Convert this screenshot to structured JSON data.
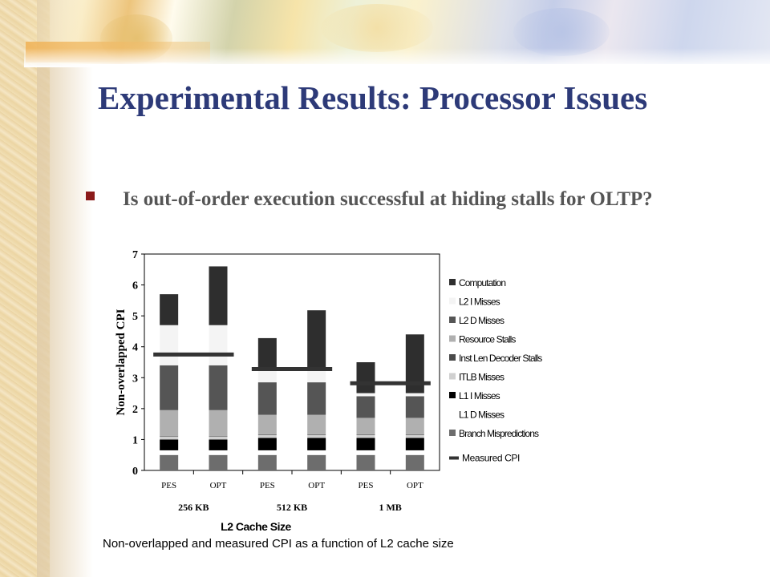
{
  "slide": {
    "title": "Experimental Results: Processor Issues",
    "bullet": "Is out-of-order execution successful at hiding stalls for OLTP?",
    "caption": "Non-overlapped and measured CPI as a function of L2 cache size"
  },
  "colors": {
    "title": "#2d3a78",
    "bullet_marker": "#8b1a1a",
    "bullet_text": "#555555"
  },
  "chart_data": {
    "type": "bar",
    "stacked": true,
    "ylabel": "Non-overlapped CPI",
    "xlabel": "L2 Cache Size",
    "ylim": [
      0,
      7
    ],
    "yticks": [
      0,
      1,
      2,
      3,
      4,
      5,
      6,
      7
    ],
    "categories": [
      "PES",
      "OPT",
      "PES",
      "OPT",
      "PES",
      "OPT"
    ],
    "groups": [
      {
        "label": "256 KB",
        "span": [
          0,
          1
        ]
      },
      {
        "label": "512 KB",
        "span": [
          2,
          3
        ]
      },
      {
        "label": "1 MB",
        "span": [
          4,
          5
        ]
      }
    ],
    "series": [
      {
        "name": "Branch Mispredictions",
        "color": "#6d6d6d",
        "values": [
          0.5,
          0.5,
          0.5,
          0.5,
          0.5,
          0.5
        ]
      },
      {
        "name": "L1 D Misses",
        "color": "#ffffff",
        "values": [
          0.15,
          0.15,
          0.15,
          0.15,
          0.15,
          0.15
        ]
      },
      {
        "name": "L1 I Misses",
        "color": "#000000",
        "values": [
          0.35,
          0.35,
          0.4,
          0.4,
          0.4,
          0.4
        ]
      },
      {
        "name": "ITLB Misses",
        "color": "#d0d0d0",
        "values": [
          0.1,
          0.1,
          0.1,
          0.1,
          0.1,
          0.1
        ]
      },
      {
        "name": "Inst Len Decoder Stalls",
        "color": "#4a4a4a",
        "values": [
          0.02,
          0.02,
          0.02,
          0.02,
          0.02,
          0.02
        ]
      },
      {
        "name": "Resource Stalls",
        "color": "#b0b0b0",
        "values": [
          0.83,
          0.83,
          0.63,
          0.63,
          0.53,
          0.53
        ]
      },
      {
        "name": "L2 D Misses",
        "color": "#555555",
        "values": [
          1.45,
          1.45,
          1.05,
          1.05,
          0.7,
          0.7
        ]
      },
      {
        "name": "L2 I Misses",
        "color": "#f4f4f4",
        "values": [
          1.3,
          1.3,
          0.45,
          0.45,
          0.1,
          0.1
        ]
      },
      {
        "name": "Computation",
        "color": "#2e2e2e",
        "values": [
          1.0,
          1.9,
          0.98,
          1.88,
          1.0,
          1.9
        ]
      }
    ],
    "measured_cpi": {
      "name": "Measured CPI",
      "color": "#333333",
      "values": [
        3.75,
        3.75,
        3.28,
        3.28,
        2.82,
        2.82
      ]
    },
    "legend_position": "right",
    "grid": false
  }
}
